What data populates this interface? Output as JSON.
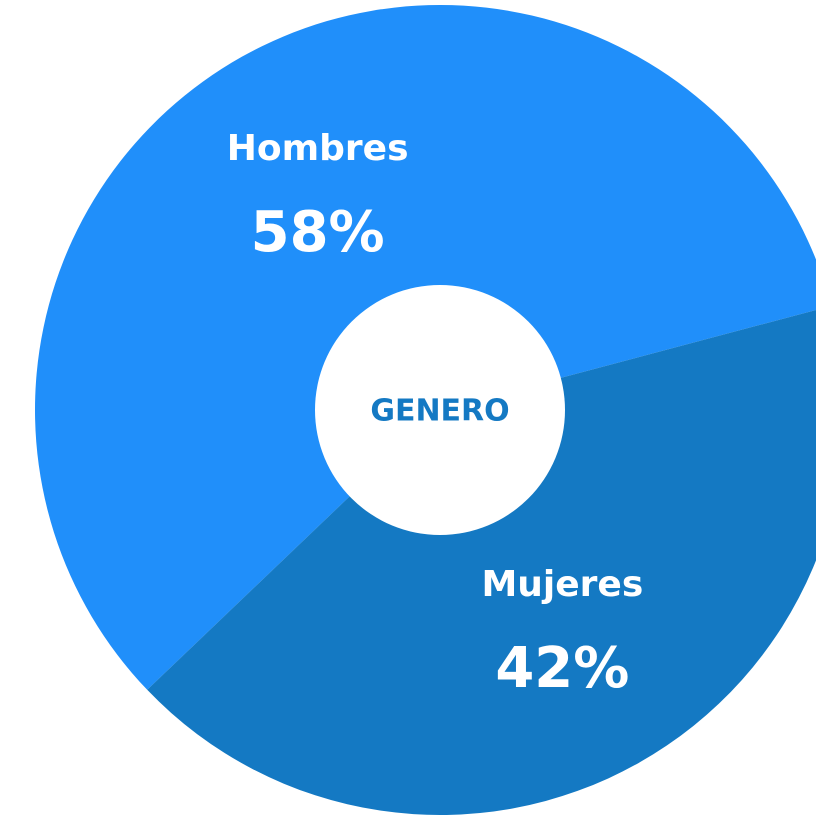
{
  "chart_data": {
    "type": "pie",
    "title": "GENERO",
    "categories": [
      "Hombres",
      "Mujeres"
    ],
    "values": [
      58,
      42
    ],
    "value_labels": [
      "58%",
      "42%"
    ],
    "colors": [
      "#208ffa",
      "#1479c3"
    ],
    "donut": true
  }
}
